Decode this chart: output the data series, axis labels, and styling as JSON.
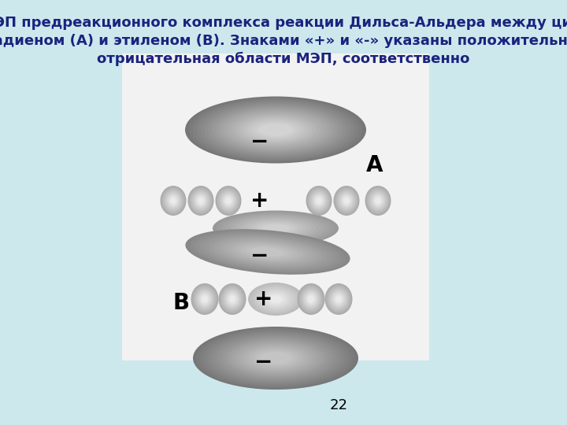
{
  "title_line1": "МЭП предреакционного комплекса реакции Дильса-Альдера между цис-",
  "title_line2": "бутадиеном (А) и этиленом (В). Знаками «+» и «-» указаны положительная и",
  "title_line3": "отрицательная области МЭП, соответственно",
  "bg_color": "#cce8ed",
  "title_color": "#1a237e",
  "title_fontsize": 13.0,
  "page_number": "22",
  "page_num_color": "#000000",
  "page_num_fontsize": 13
}
